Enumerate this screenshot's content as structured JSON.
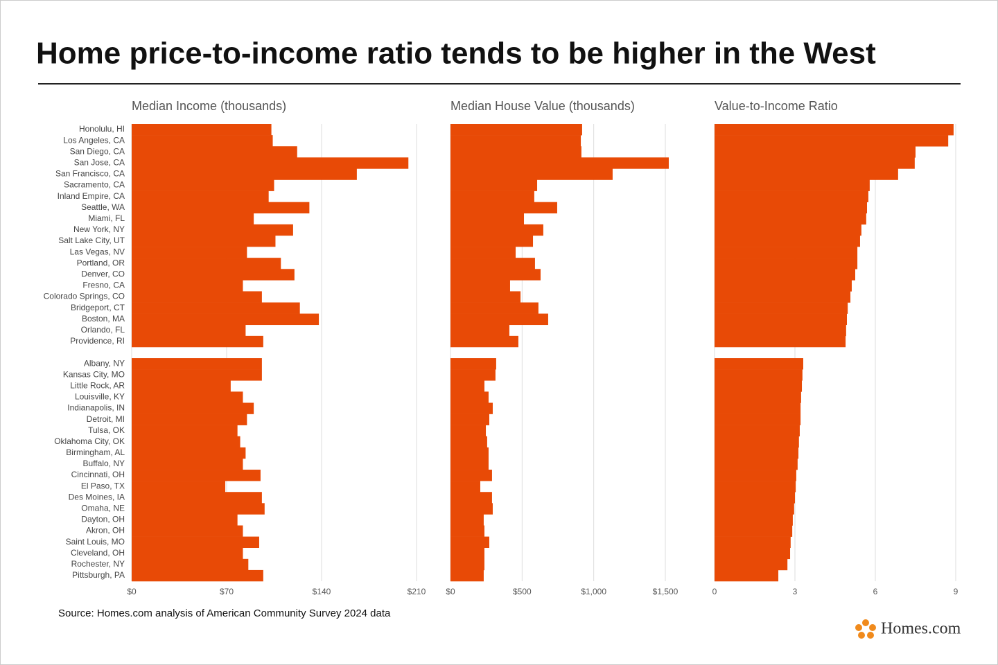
{
  "title": "Home price-to-income ratio tends to be higher in the West",
  "source": "Source: Homes.com analysis of American Community Survey 2024 data",
  "logo": "Homes.com",
  "chart_data": [
    {
      "type": "bar",
      "orientation": "horizontal",
      "title": "Median Income (thousands)",
      "color": "#e84a06",
      "grid": true,
      "categories": [
        "Honolulu, HI",
        "Los Angeles, CA",
        "San Diego, CA",
        "San Jose, CA",
        "San Francisco, CA",
        "Sacramento, CA",
        "Inland Empire, CA",
        "Seattle, WA",
        "Miami, FL",
        "New York, NY",
        "Salt Lake City, UT",
        "Las Vegas, NV",
        "Portland, OR",
        "Denver, CO",
        "Fresno, CA",
        "Colorado Springs, CO",
        "Bridgeport, CT",
        "Boston, MA",
        "Orlando, FL",
        "Providence, RI",
        null,
        "Albany, NY",
        "Kansas City, MO",
        "Little Rock, AR",
        "Louisville, KY",
        "Indianapolis, IN",
        "Detroit, MI",
        "Tulsa, OK",
        "Oklahoma City, OK",
        "Birmingham, AL",
        "Buffalo, NY",
        "Cincinnati, OH",
        "El Paso, TX",
        "Des Moines, IA",
        "Omaha, NE",
        "Dayton, OH",
        "Akron, OH",
        "Saint Louis, MO",
        "Cleveland, OH",
        "Rochester, NY",
        "Pittsburgh, PA"
      ],
      "values": [
        103,
        104,
        122,
        204,
        166,
        105,
        101,
        131,
        90,
        119,
        106,
        85,
        110,
        120,
        82,
        96,
        124,
        138,
        84,
        97,
        null,
        96,
        96,
        73,
        82,
        90,
        85,
        78,
        80,
        84,
        82,
        95,
        69,
        96,
        98,
        78,
        82,
        94,
        82,
        86,
        97
      ],
      "xlim": [
        0,
        210
      ],
      "xticks": [
        {
          "value": 0,
          "label": "$0"
        },
        {
          "value": 70,
          "label": "$70"
        },
        {
          "value": 140,
          "label": "$140"
        },
        {
          "value": 210,
          "label": "$210"
        }
      ]
    },
    {
      "type": "bar",
      "orientation": "horizontal",
      "title": "Median House Value (thousands)",
      "color": "#e84a06",
      "grid": true,
      "values": [
        919,
        910,
        914,
        1524,
        1132,
        605,
        585,
        745,
        513,
        648,
        576,
        455,
        590,
        629,
        416,
        489,
        614,
        682,
        411,
        474,
        null,
        319,
        314,
        237,
        266,
        295,
        271,
        247,
        256,
        266,
        266,
        290,
        208,
        290,
        295,
        232,
        237,
        271,
        237,
        237,
        232
      ],
      "xlim": [
        0,
        1500
      ],
      "xticks": [
        {
          "value": 0,
          "label": "$0"
        },
        {
          "value": 500,
          "label": "$500"
        },
        {
          "value": 1000,
          "label": "$1,000"
        },
        {
          "value": 1500,
          "label": "$1,500"
        }
      ]
    },
    {
      "type": "bar",
      "orientation": "horizontal",
      "title": "Value-to-Income Ratio",
      "color": "#e84a06",
      "grid": true,
      "values": [
        8.92,
        8.72,
        7.5,
        7.47,
        6.85,
        5.79,
        5.74,
        5.69,
        5.66,
        5.48,
        5.43,
        5.33,
        5.33,
        5.25,
        5.12,
        5.07,
        4.97,
        4.94,
        4.91,
        4.89,
        null,
        3.31,
        3.28,
        3.26,
        3.23,
        3.21,
        3.21,
        3.18,
        3.15,
        3.13,
        3.1,
        3.05,
        3.03,
        3.0,
        2.97,
        2.92,
        2.9,
        2.84,
        2.82,
        2.72,
        2.38
      ],
      "xlim": [
        0,
        9
      ],
      "xticks": [
        0,
        3,
        6,
        9
      ]
    }
  ]
}
